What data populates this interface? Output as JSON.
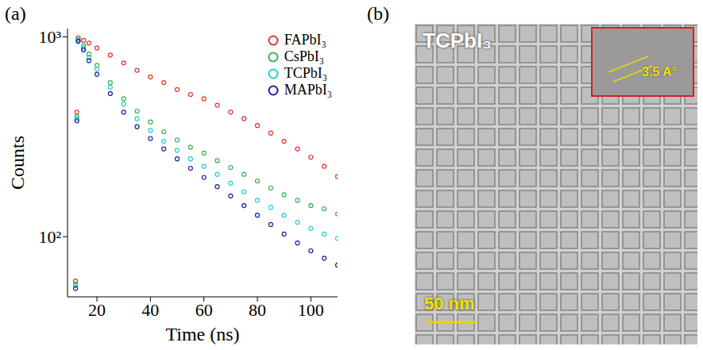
{
  "chart_data": [
    {
      "type": "scatter",
      "panel": "(a)",
      "x_label": "Time (ns)",
      "y_label": "Counts",
      "log": "y",
      "xlim": [
        9,
        110
      ],
      "ylim": [
        50,
        1100
      ],
      "xticks": [
        20,
        40,
        60,
        80,
        100
      ],
      "yticks": [
        {
          "value": 100,
          "label": "10²"
        },
        {
          "value": 1000,
          "label": "10³"
        }
      ],
      "legend": "top right",
      "marker": "circle",
      "x": [
        12,
        12.5,
        13,
        15,
        17,
        20,
        25,
        30,
        35,
        40,
        45,
        50,
        55,
        60,
        65,
        70,
        75,
        80,
        85,
        90,
        95,
        100,
        105,
        110
      ],
      "series": [
        {
          "name": "FAPbI₃",
          "color": "#e8302a",
          "values": [
            60,
            420,
            990,
            960,
            930,
            880,
            810,
            740,
            680,
            630,
            590,
            545,
            515,
            490,
            455,
            420,
            390,
            360,
            330,
            300,
            275,
            250,
            225,
            200
          ]
        },
        {
          "name": "CsPbI₃",
          "color": "#34b04a",
          "values": [
            58,
            400,
            970,
            900,
            820,
            720,
            590,
            490,
            425,
            375,
            335,
            305,
            280,
            262,
            240,
            222,
            205,
            190,
            175,
            162,
            152,
            143,
            138,
            130
          ]
        },
        {
          "name": "TCPbI₃",
          "color": "#22cfd6",
          "values": [
            57,
            390,
            960,
            880,
            790,
            690,
            560,
            460,
            390,
            340,
            300,
            270,
            245,
            225,
            205,
            185,
            168,
            152,
            140,
            128,
            118,
            110,
            103,
            98
          ]
        },
        {
          "name": "MAPbI₃",
          "color": "#1c1ca6",
          "values": [
            55,
            380,
            950,
            860,
            760,
            650,
            520,
            420,
            355,
            310,
            275,
            245,
            220,
            198,
            178,
            160,
            143,
            128,
            115,
            103,
            93,
            85,
            78,
            72
          ]
        }
      ]
    },
    {
      "type": "image",
      "panel": "(b)",
      "title": "TCPbI₃",
      "scale_bar": "50 nm",
      "inset_label": "3.5 A°"
    }
  ]
}
